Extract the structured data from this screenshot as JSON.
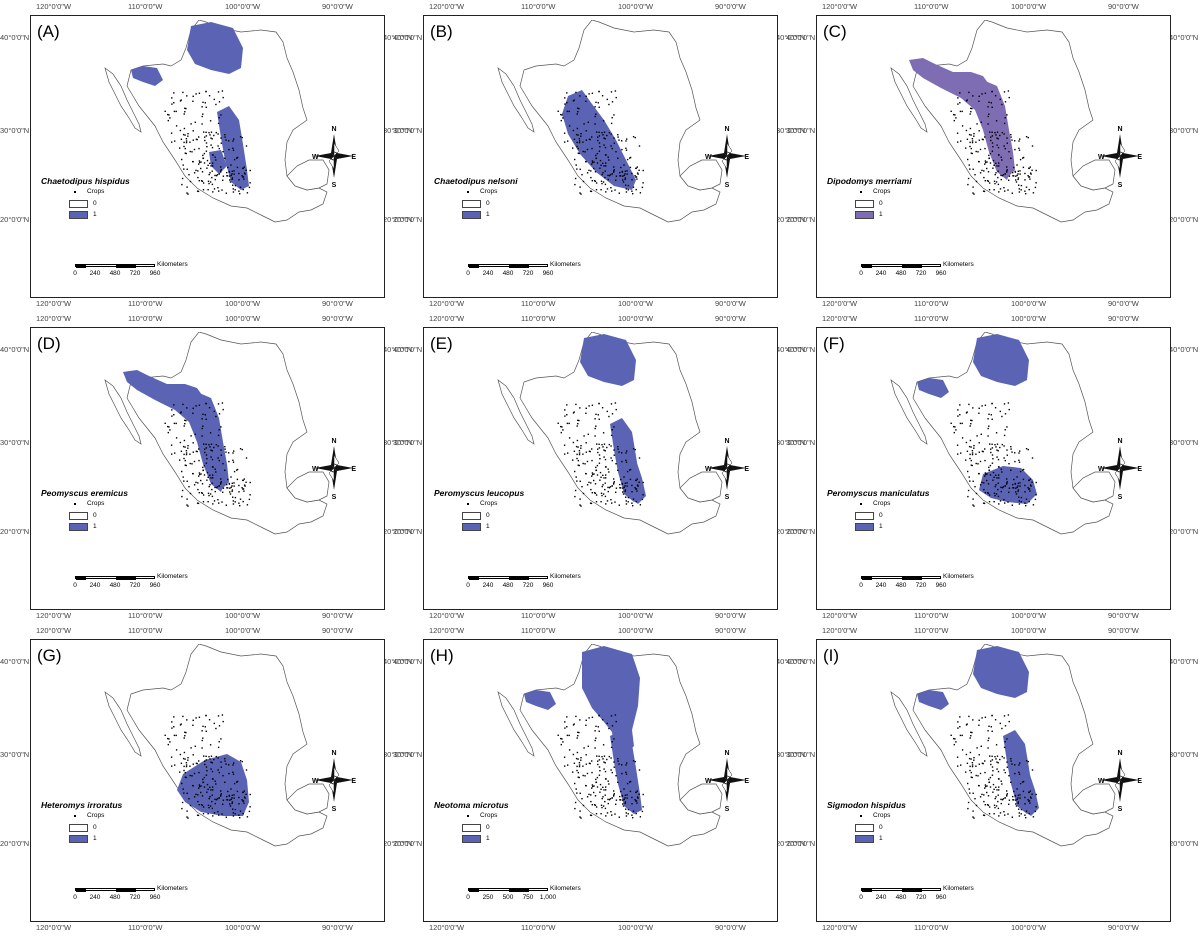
{
  "graticule": {
    "top_lon": [
      "120°0'0\"W",
      "110°0'0\"W",
      "100°0'0\"W",
      "90°0'0\"W"
    ],
    "lat": [
      "40°0'0\"N",
      "30°0'0\"N",
      "20°0'0\"N"
    ]
  },
  "compass": {
    "n": "N",
    "s": "S",
    "e": "E",
    "w": "W"
  },
  "legend_title": "Crops",
  "scale_unit": "Kilometers",
  "colors": {
    "presence": "#5b64b4",
    "presence_alt": "#7f6db3",
    "border": "#555555",
    "points": "#000000"
  },
  "panels": [
    {
      "letter": "(A)",
      "species": "Chaetodipus hispidus",
      "legend": [
        "0",
        "1"
      ],
      "scale": [
        "0",
        "240",
        "480",
        "720",
        "960"
      ],
      "color_key": "presence",
      "regions": [
        "north",
        "northwest",
        "east_strip",
        "south_patch"
      ]
    },
    {
      "letter": "(B)",
      "species": "Chaetodipus nelsoni",
      "legend": [
        "0",
        "1"
      ],
      "scale": [
        "0",
        "240",
        "480",
        "720",
        "960"
      ],
      "color_key": "presence",
      "regions": [
        "central"
      ]
    },
    {
      "letter": "(C)",
      "species": "Dipodomys merriami",
      "legend": [
        "0",
        "1"
      ],
      "scale": [
        "0",
        "240",
        "480",
        "720",
        "960"
      ],
      "color_key": "presence_alt",
      "regions": [
        "northwest_band",
        "central_narrow"
      ]
    },
    {
      "letter": "(D)",
      "species": "Peomyscus eremicus",
      "legend": [
        "0",
        "1"
      ],
      "scale": [
        "0",
        "240",
        "480",
        "720",
        "960"
      ],
      "color_key": "presence",
      "regions": [
        "northwest_band",
        "central_narrow"
      ]
    },
    {
      "letter": "(E)",
      "species": "Peromyscus leucopus",
      "legend": [
        "0",
        "1"
      ],
      "scale": [
        "0",
        "240",
        "480",
        "720",
        "960"
      ],
      "color_key": "presence",
      "regions": [
        "north",
        "east_strip",
        "gulf"
      ]
    },
    {
      "letter": "(F)",
      "species": "Peromyscus maniculatus",
      "legend": [
        "0",
        "1"
      ],
      "scale": [
        "0",
        "240",
        "480",
        "720",
        "960"
      ],
      "color_key": "presence",
      "regions": [
        "north",
        "northwest",
        "south_belt"
      ]
    },
    {
      "letter": "(G)",
      "species": "Heteromys irroratus",
      "legend": [
        "0",
        "1"
      ],
      "scale": [
        "0",
        "240",
        "480",
        "720",
        "960"
      ],
      "color_key": "presence",
      "regions": [
        "southcentral"
      ]
    },
    {
      "letter": "(H)",
      "species": "Neotoma microtus",
      "legend": [
        "0",
        "1"
      ],
      "scale": [
        "0",
        "250",
        "500",
        "750",
        "1,000"
      ],
      "color_key": "presence",
      "regions": [
        "north_big",
        "east_strip",
        "northwest"
      ]
    },
    {
      "letter": "(I)",
      "species": "Sigmodon hispidus",
      "legend": [
        "0",
        "1"
      ],
      "scale": [
        "0",
        "240",
        "480",
        "720",
        "960"
      ],
      "color_key": "presence",
      "regions": [
        "north",
        "northwest",
        "east_strip",
        "gulf"
      ]
    }
  ]
}
